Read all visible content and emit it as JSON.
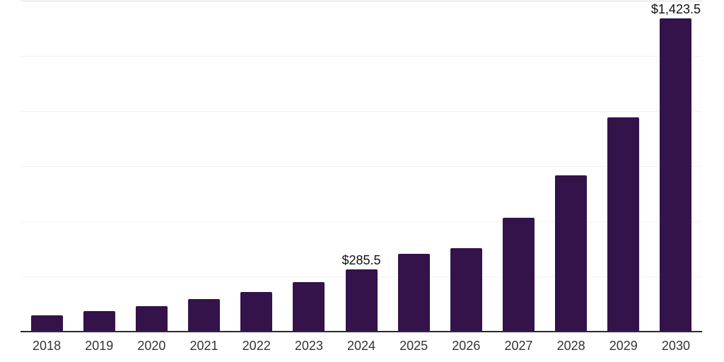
{
  "chart_data": {
    "type": "bar",
    "title": "",
    "xlabel": "",
    "ylabel": "",
    "unit_prefix": "$",
    "categories": [
      "2018",
      "2019",
      "2020",
      "2021",
      "2022",
      "2023",
      "2024",
      "2025",
      "2026",
      "2027",
      "2028",
      "2029",
      "2030"
    ],
    "values": [
      77,
      96,
      119,
      150,
      184,
      229,
      285.5,
      356,
      381,
      519,
      712,
      974,
      1423.5
    ],
    "value_labels": [
      {
        "category": "2024",
        "text": "$285.5"
      },
      {
        "category": "2030",
        "text": "$1,423.5"
      }
    ],
    "ylim": [
      0,
      1500
    ],
    "gridline_values": [
      250,
      500,
      750,
      1000,
      1250,
      1500
    ],
    "grid": "horizontal-only",
    "legend": "none",
    "y_axis_labels_visible": false,
    "colors": {
      "bar": "#34124A",
      "axis": "#2B2B2B",
      "gridline": "#F2F2F2",
      "top_gridline": "#DCDCDC",
      "tick_label": "#333333",
      "value_label": "#111111",
      "background": "#FFFFFF"
    }
  }
}
